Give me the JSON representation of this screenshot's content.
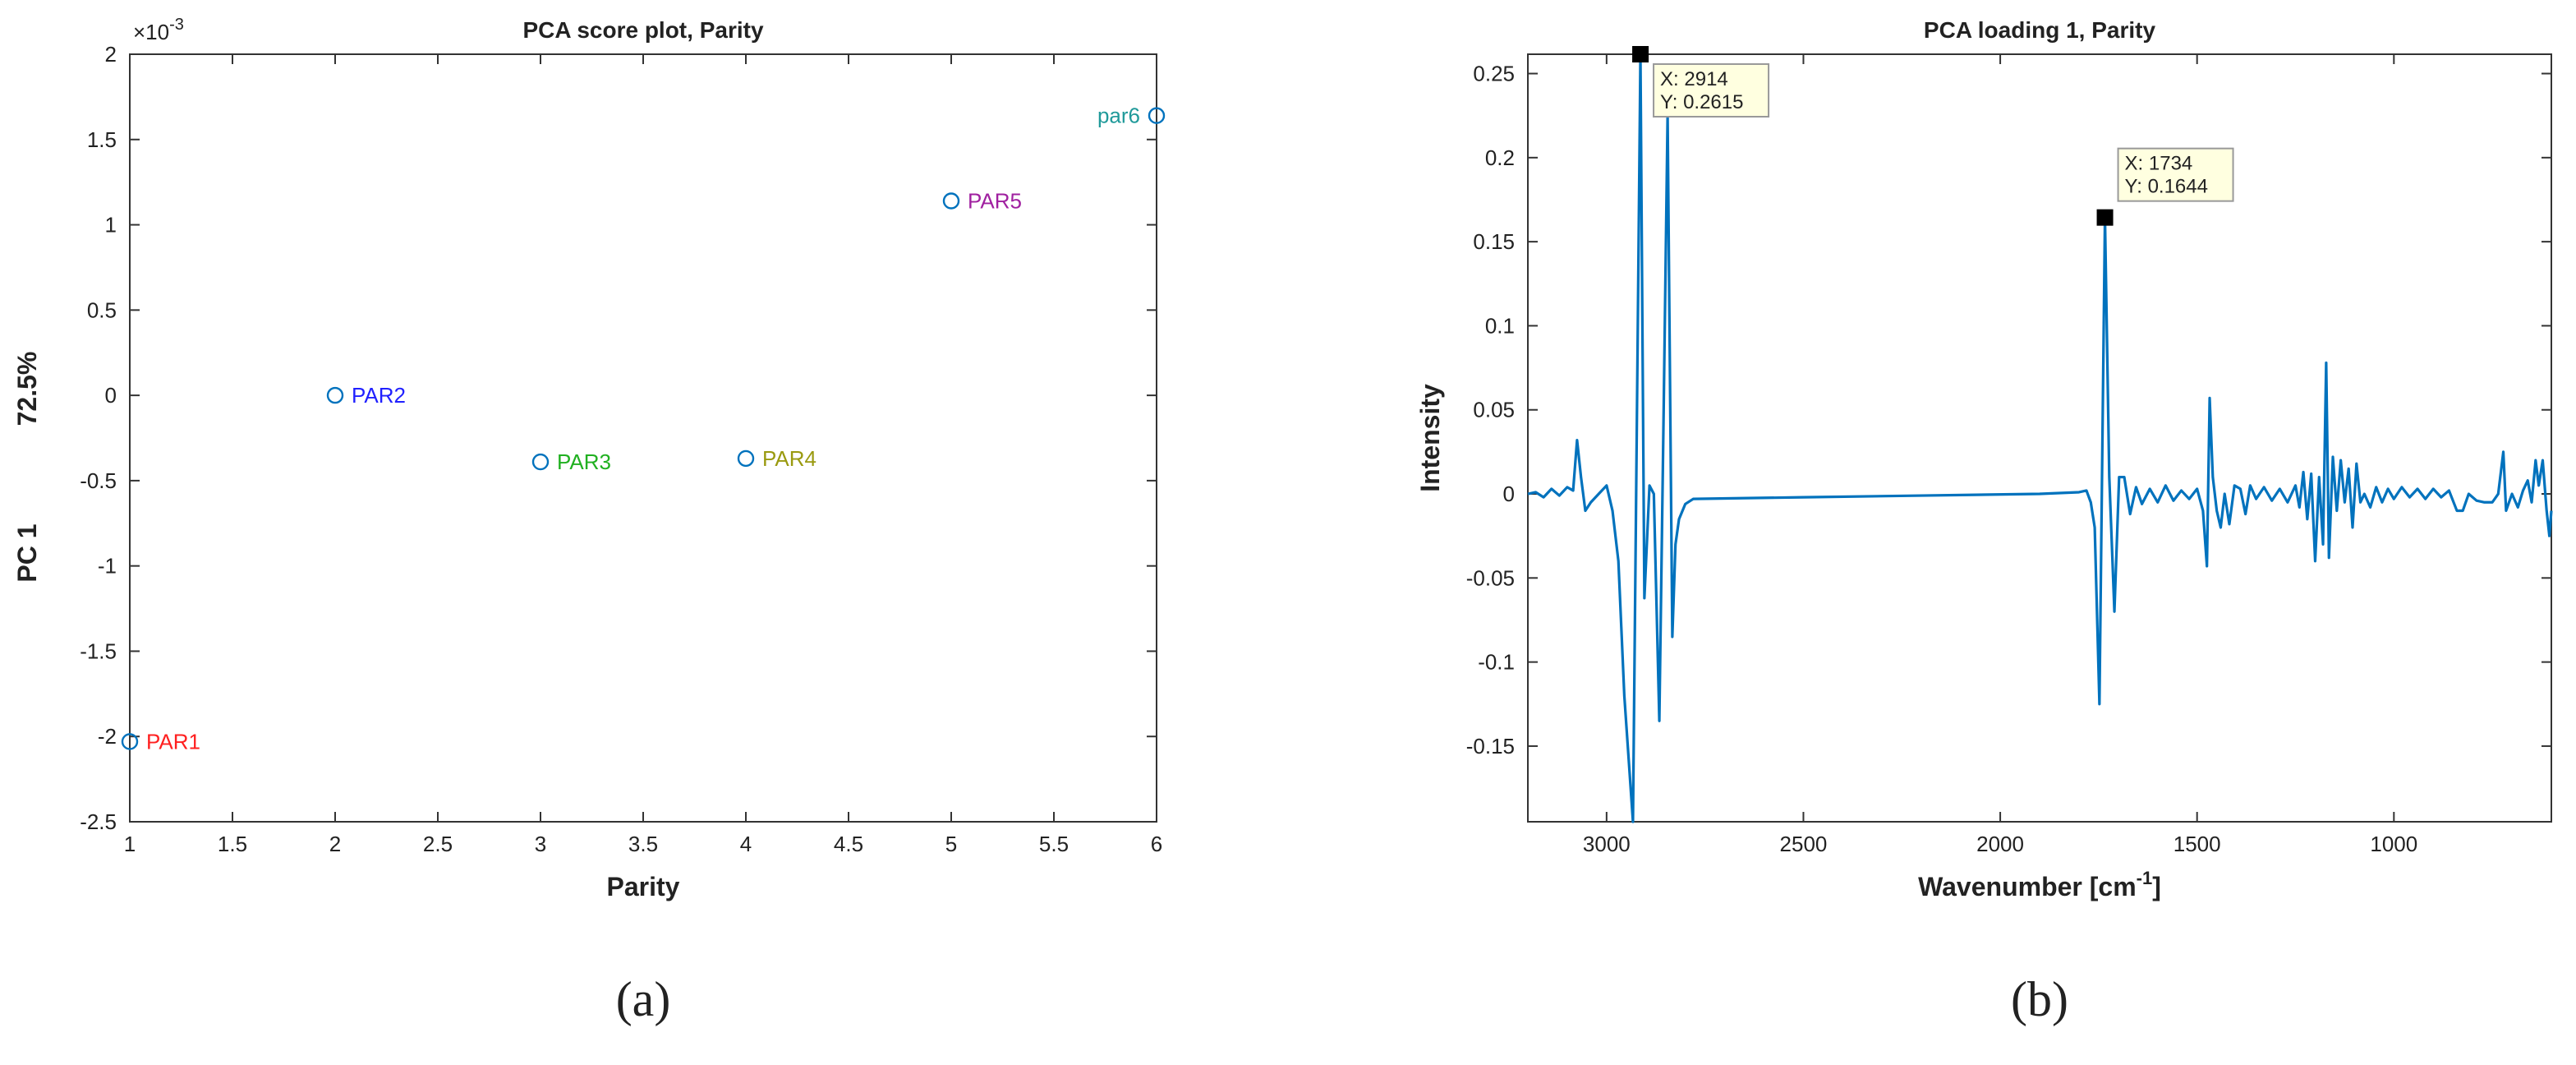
{
  "chart_data": [
    {
      "type": "scatter",
      "title": "PCA score plot, Parity",
      "xlabel": "Parity",
      "ylabel": "PC 1",
      "ylabel_note": "72.5%",
      "y_multiplier": "×10",
      "y_multiplier_exp": "-3",
      "panel_label": "(a)",
      "x": [
        1,
        2,
        3,
        4,
        5,
        6
      ],
      "values": [
        -2.03,
        0.0,
        -0.39,
        -0.37,
        1.14,
        1.64
      ],
      "point_labels": [
        "PAR1",
        "PAR2",
        "PAR3",
        "PAR4",
        "PAR5",
        "par6"
      ],
      "label_colors": [
        "#ff2020",
        "#2020ff",
        "#20b020",
        "#9a9a10",
        "#a020a0",
        "#209a9a"
      ],
      "color": "#0072bd",
      "xlim": [
        1,
        6
      ],
      "xticks": [
        1,
        1.5,
        2,
        2.5,
        3,
        3.5,
        4,
        4.5,
        5,
        5.5,
        6
      ],
      "ylim": [
        -2.5,
        2
      ],
      "yticks": [
        -2.5,
        -2,
        -1.5,
        -1,
        -0.5,
        0,
        0.5,
        1,
        1.5,
        2
      ]
    },
    {
      "type": "line",
      "title": "PCA loading 1, Parity",
      "xlabel": "Wavenumber [cm",
      "xlabel_sup": "-1",
      "xlabel_end": "]",
      "ylabel": "Intensity",
      "panel_label": "(b)",
      "color": "#0072bd",
      "x": [
        3200,
        3180,
        3160,
        3140,
        3120,
        3100,
        3085,
        3075,
        3065,
        3054,
        3040,
        3020,
        3000,
        2985,
        2970,
        2955,
        2933,
        2914,
        2904,
        2891,
        2880,
        2866,
        2855,
        2845,
        2833,
        2825,
        2816,
        2800,
        2780,
        2500,
        2200,
        1900,
        1800,
        1781,
        1770,
        1760,
        1748,
        1734,
        1723,
        1710,
        1698,
        1685,
        1670,
        1655,
        1640,
        1620,
        1600,
        1580,
        1560,
        1540,
        1520,
        1500,
        1485,
        1475,
        1468,
        1460,
        1450,
        1440,
        1430,
        1418,
        1405,
        1390,
        1377,
        1365,
        1350,
        1330,
        1310,
        1290,
        1270,
        1250,
        1240,
        1230,
        1220,
        1210,
        1200,
        1190,
        1180,
        1172,
        1165,
        1155,
        1145,
        1135,
        1125,
        1115,
        1105,
        1095,
        1085,
        1075,
        1060,
        1045,
        1030,
        1015,
        1000,
        980,
        960,
        940,
        920,
        900,
        880,
        860,
        840,
        825,
        810,
        790,
        770,
        750,
        735,
        722,
        715,
        700,
        685,
        672,
        660,
        650,
        640,
        632,
        622,
        612,
        605,
        600
      ],
      "values": [
        0,
        0.001,
        -0.002,
        0.003,
        -0.001,
        0.004,
        0.002,
        0.032,
        0.01,
        -0.01,
        -0.005,
        0,
        0.005,
        -0.01,
        -0.04,
        -0.12,
        -0.195,
        0.2615,
        -0.062,
        0.005,
        0,
        -0.135,
        0.05,
        0.225,
        -0.085,
        -0.03,
        -0.015,
        -0.006,
        -0.003,
        -0.002,
        -0.001,
        0,
        0.001,
        0.002,
        -0.005,
        -0.02,
        -0.125,
        0.1644,
        0.01,
        -0.07,
        0.01,
        0.01,
        -0.012,
        0.004,
        -0.006,
        0.003,
        -0.005,
        0.005,
        -0.004,
        0.002,
        -0.003,
        0.003,
        -0.01,
        -0.043,
        0.057,
        0.01,
        -0.01,
        -0.02,
        0,
        -0.018,
        0.005,
        0.003,
        -0.012,
        0.005,
        -0.003,
        0.004,
        -0.004,
        0.003,
        -0.005,
        0.005,
        -0.008,
        0.013,
        -0.015,
        0.012,
        -0.04,
        0.01,
        -0.03,
        0.078,
        -0.038,
        0.022,
        -0.01,
        0.02,
        -0.005,
        0.015,
        -0.02,
        0.018,
        -0.005,
        0,
        -0.008,
        0.004,
        -0.005,
        0.003,
        -0.003,
        0.004,
        -0.002,
        0.003,
        -0.003,
        0.003,
        -0.002,
        0.002,
        -0.01,
        -0.01,
        0,
        -0.004,
        -0.005,
        -0.005,
        0,
        0.025,
        -0.01,
        0,
        -0.008,
        0.002,
        0.008,
        -0.005,
        0.02,
        0.005,
        0.02,
        -0.01,
        -0.025,
        -0.01
      ],
      "annotations": [
        {
          "x": 2914,
          "y": 0.2615,
          "label_x": "X: 2914",
          "label_y": "Y: 0.2615"
        },
        {
          "x": 1734,
          "y": 0.1644,
          "label_x": "X: 1734",
          "label_y": "Y: 0.1644"
        }
      ],
      "xlim": [
        3200,
        600
      ],
      "xticks": [
        3000,
        2500,
        2000,
        1500,
        1000
      ],
      "ylim": [
        -0.195,
        0.2615
      ],
      "yticks": [
        -0.15,
        -0.1,
        -0.05,
        0,
        0.05,
        0.1,
        0.15,
        0.2,
        0.25
      ]
    }
  ]
}
